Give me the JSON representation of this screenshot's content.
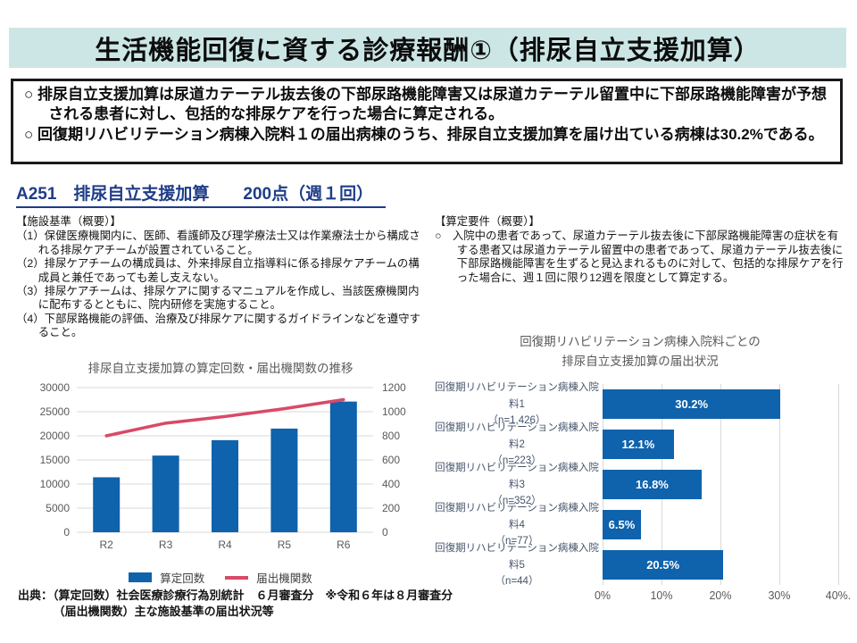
{
  "slide": {
    "title": "生活機能回復に資する診療報酬①（排尿自立支援加算）"
  },
  "summary": {
    "bullets": [
      "○ 排尿自立支援加算は尿道カテーテル抜去後の下部尿路機能障害又は尿道カテーテル留置中に下部尿路機能障害が予想される患者に対し、包括的な排尿ケアを行った場合に算定される。",
      "○ 回復期リハビリテーション病棟入院料１の届出病棟のうち、排尿自立支援加算を届け出ている病棟は30.2%である。"
    ]
  },
  "section_heading": "A251　排尿自立支援加算　　200点（週１回）",
  "facility": {
    "heading": "【施設基準（概要）】",
    "items": [
      "（1）保健医療機関内に、医師、看護師及び理学療法士又は作業療法士から構成される排尿ケアチームが設置されていること。",
      "（2）排尿ケアチームの構成員は、外来排尿自立指導料に係る排尿ケアチームの構成員と兼任であっても差し支えない。",
      "（3）排尿ケアチームは、排尿ケアに関するマニュアルを作成し、当該医療機関内に配布するとともに、院内研修を実施すること。",
      "（4）下部尿路機能の評価、治療及び排尿ケアに関するガイドラインなどを遵守すること。"
    ]
  },
  "requirements": {
    "heading": "【算定要件（概要）】",
    "items": [
      "○　入院中の患者であって、尿道カテーテル抜去後に下部尿路機能障害の症状を有する患者又は尿道カテーテル留置中の患者であって、尿道カテーテル抜去後に下部尿路機能障害を生ずると見込まれるものに対して、包括的な排尿ケアを行った場合に、週１回に限り12週を限度として算定する。"
    ]
  },
  "source": {
    "line1": "出典：（算定回数）社会医療診療行為別統計　６月審査分　※令和６年は８月審査分",
    "line2": "（届出機関数）主な施設基準の届出状況等"
  },
  "colors": {
    "title_bar_bg": "#cbe6e5",
    "heading_navy": "#1f3c88",
    "bar_blue": "#0f62ac",
    "line_red": "#d84a68",
    "grid": "#d9d9d9",
    "axis_text": "#595959",
    "category_text": "#44546a"
  },
  "chart_data": [
    {
      "type": "bar",
      "subtype": "combo-bar-line-dual-axis",
      "title": "排尿自立支援加算の算定回数・届出機関数の推移",
      "categories": [
        "R2",
        "R3",
        "R4",
        "R5",
        "R6"
      ],
      "series": [
        {
          "name": "算定回数",
          "type": "bar",
          "axis": "left",
          "values": [
            11400,
            15900,
            19100,
            21500,
            27100
          ]
        },
        {
          "name": "届出機関数",
          "type": "line",
          "axis": "right",
          "values": [
            800,
            905,
            960,
            1025,
            1100
          ]
        }
      ],
      "left_axis": {
        "min": 0,
        "max": 30000,
        "ticks": [
          0,
          5000,
          10000,
          15000,
          20000,
          25000,
          30000
        ]
      },
      "right_axis": {
        "min": 0,
        "max": 1200,
        "ticks": [
          0,
          200,
          400,
          600,
          800,
          1000,
          1200
        ]
      },
      "grid": "horizontal",
      "legend_position": "bottom"
    },
    {
      "type": "bar",
      "orientation": "horizontal",
      "title_lines": [
        "回復期リハビリテーション病棟入院料ごとの",
        "排尿自立支援加算の届出状況"
      ],
      "rows": [
        {
          "label": "回復期リハビリテーション病棟入院料1",
          "n": "（n=1,426）",
          "value": 30.2,
          "value_label": "30.2%"
        },
        {
          "label": "回復期リハビリテーション病棟入院料2",
          "n": "（n=223）",
          "value": 12.1,
          "value_label": "12.1%"
        },
        {
          "label": "回復期リハビリテーション病棟入院料3",
          "n": "（n=352）",
          "value": 16.8,
          "value_label": "16.8%"
        },
        {
          "label": "回復期リハビリテーション病棟入院料4",
          "n": "（n=77）",
          "value": 6.5,
          "value_label": "6.5%"
        },
        {
          "label": "回復期リハビリテーション病棟入院料5",
          "n": "（n=44）",
          "value": 20.5,
          "value_label": "20.5%"
        }
      ],
      "x_axis": {
        "min": 0,
        "max": 40,
        "tick_labels": [
          "0%",
          "10%",
          "20%",
          "30%",
          "40%."
        ]
      },
      "grid": "vertical",
      "value_label_position": "inside-white"
    }
  ]
}
